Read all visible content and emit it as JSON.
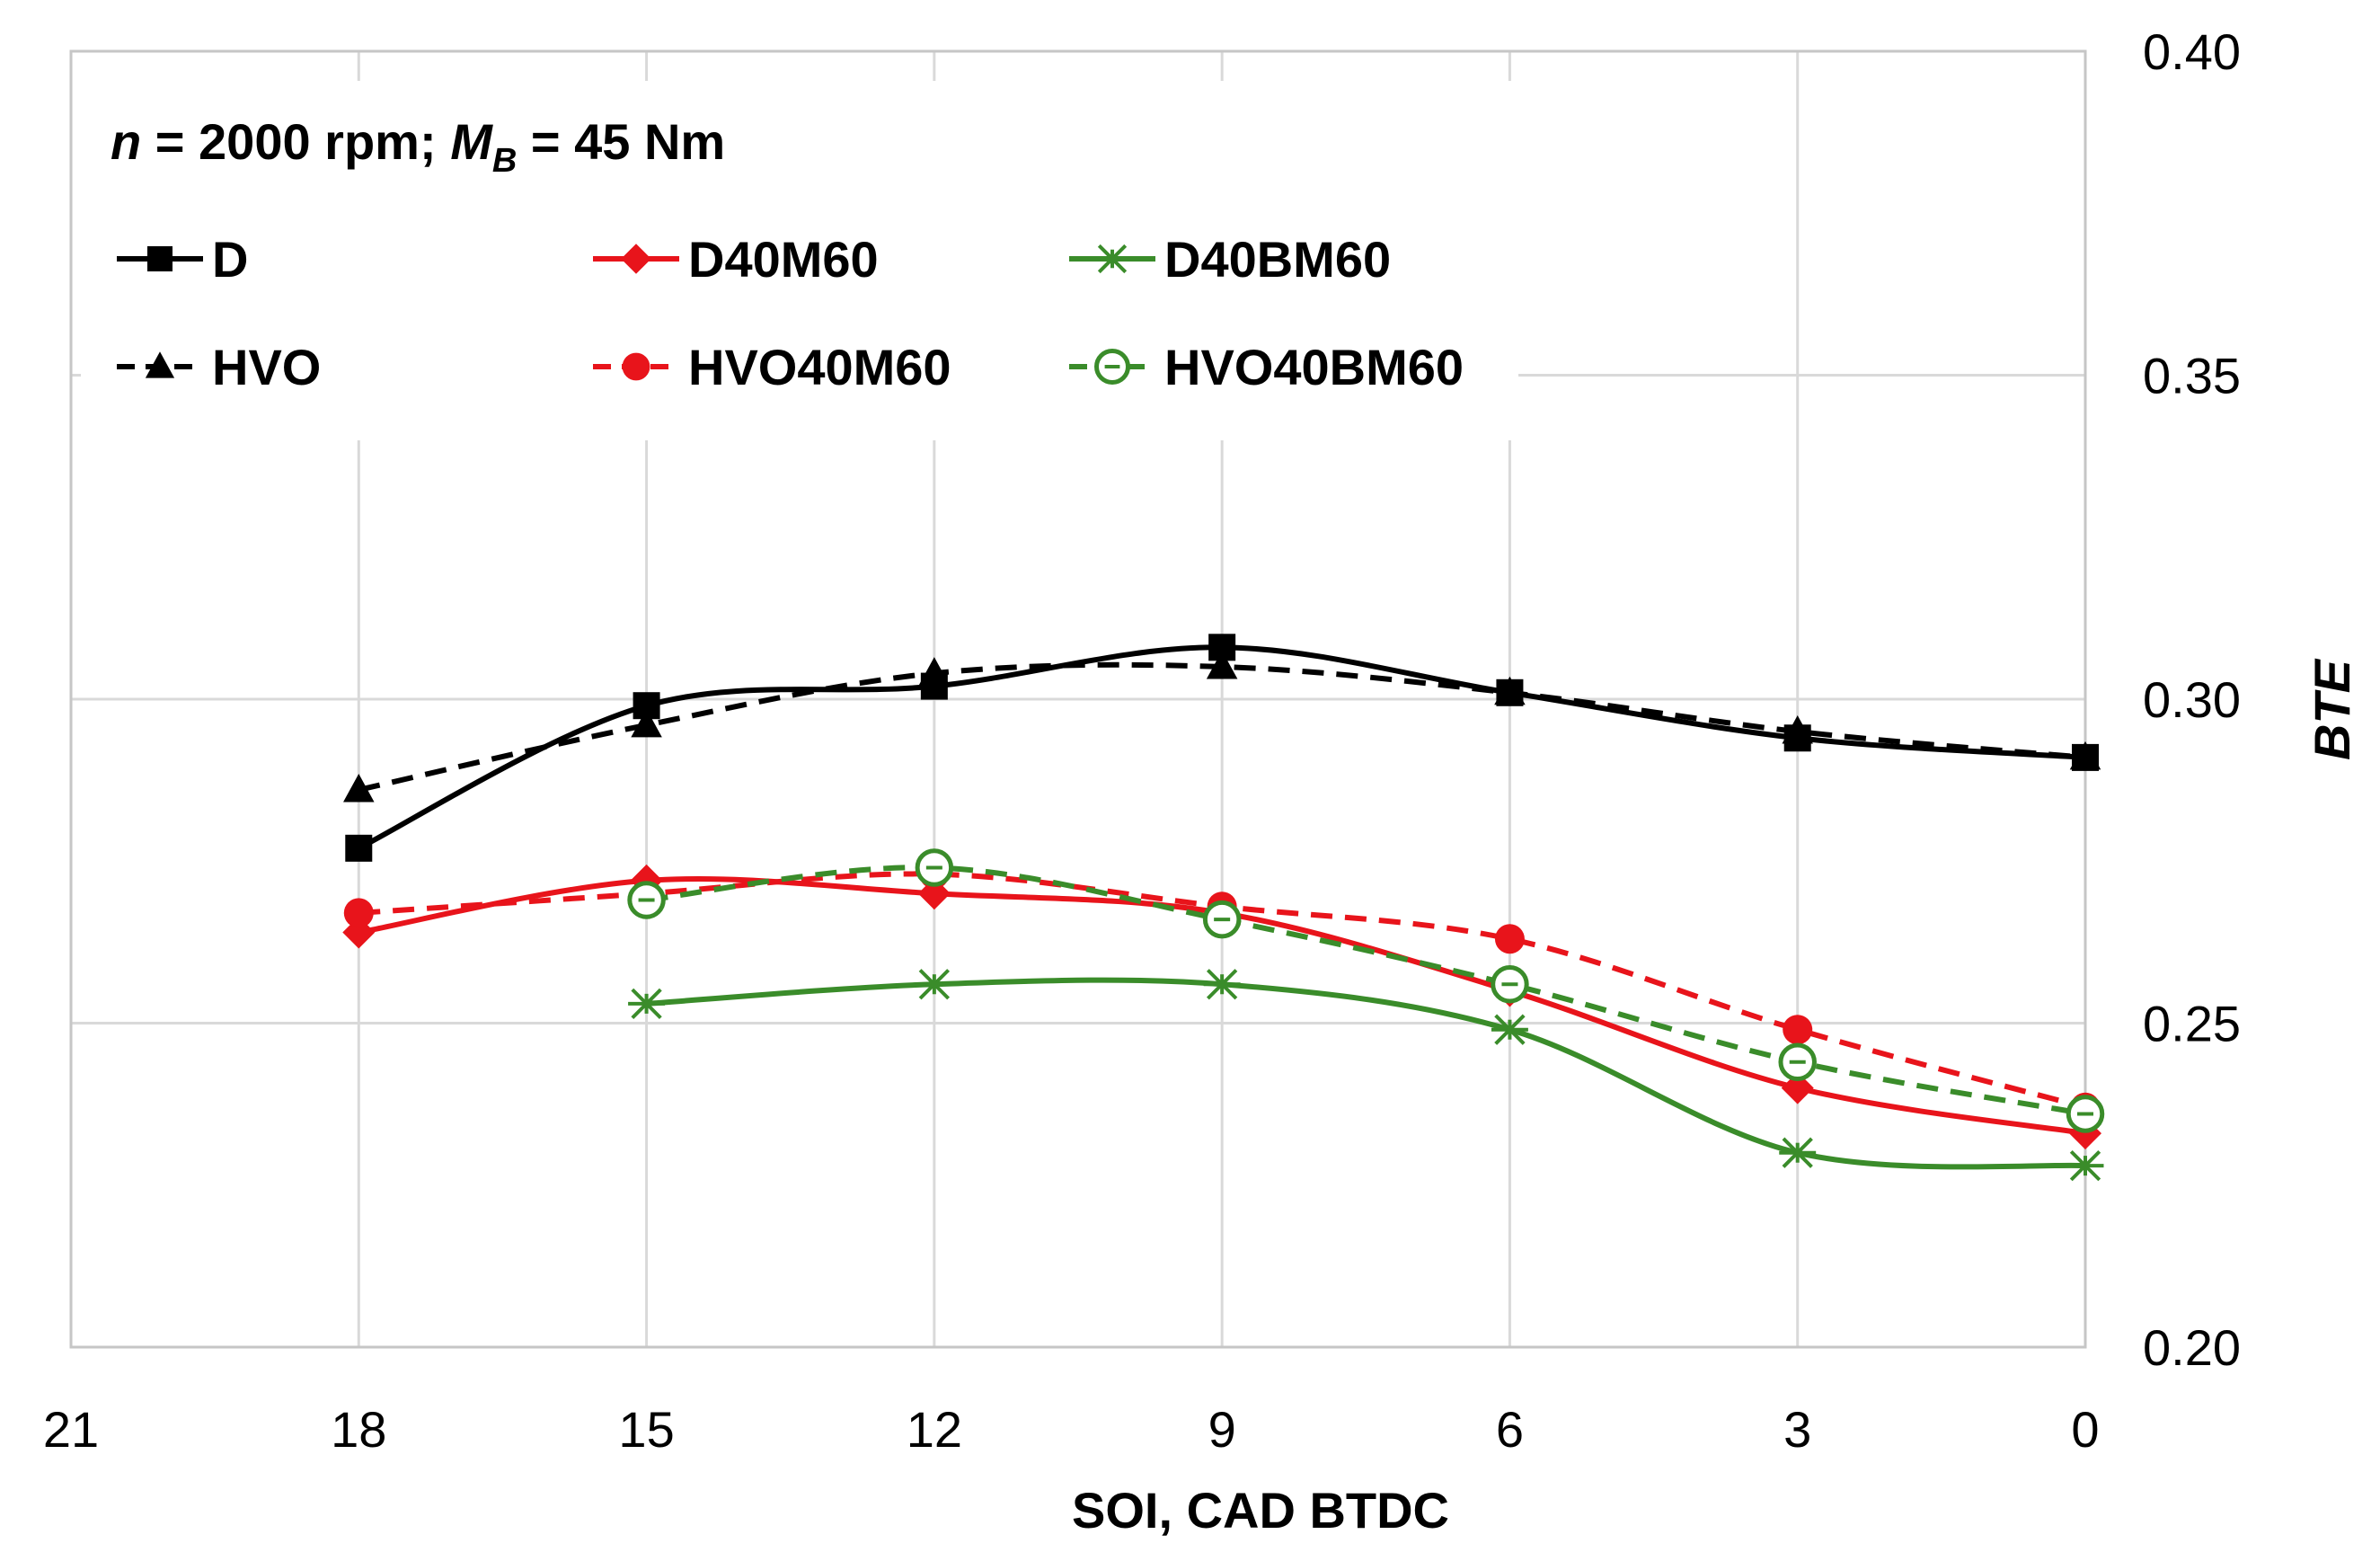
{
  "chart_data": {
    "type": "line",
    "title": "",
    "annotation": {
      "n_symbol": "n",
      "n_text": " = 2000 rpm; ",
      "m_symbol": "M",
      "m_subscript": "B",
      "m_text": " = 45 Nm"
    },
    "xlabel": "SOI,  CAD BTDC",
    "ylabel": "BTE",
    "xlim": [
      21,
      0
    ],
    "ylim": [
      0.2,
      0.4
    ],
    "x_ticks": [
      21,
      18,
      15,
      12,
      9,
      6,
      3,
      0
    ],
    "x_tick_labels": [
      "21",
      "18",
      "15",
      "12",
      "9",
      "6",
      "3",
      "0"
    ],
    "y_ticks": [
      0.2,
      0.25,
      0.3,
      0.35,
      0.4
    ],
    "y_tick_labels": [
      "0.20",
      "0.25",
      "0.30",
      "0.35",
      "0.40"
    ],
    "grid": true,
    "series": [
      {
        "name": "D",
        "color": "#000000",
        "dashed": false,
        "marker": "square",
        "points": [
          [
            18,
            0.277
          ],
          [
            15,
            0.299
          ],
          [
            12,
            0.302
          ],
          [
            9,
            0.308
          ],
          [
            6,
            0.301
          ],
          [
            3,
            0.294
          ],
          [
            0,
            0.291
          ]
        ]
      },
      {
        "name": "HVO",
        "color": "#000000",
        "dashed": true,
        "marker": "triangle",
        "points": [
          [
            18,
            0.286
          ],
          [
            15,
            0.296
          ],
          [
            12,
            0.304
          ],
          [
            9,
            0.305
          ],
          [
            6,
            0.301
          ],
          [
            3,
            0.295
          ],
          [
            0,
            0.291
          ]
        ]
      },
      {
        "name": "D40M60",
        "color": "#e8141b",
        "dashed": false,
        "marker": "diamond",
        "points": [
          [
            18,
            0.264
          ],
          [
            15,
            0.272
          ],
          [
            12,
            0.27
          ],
          [
            9,
            0.267
          ],
          [
            6,
            0.255
          ],
          [
            3,
            0.24
          ],
          [
            0,
            0.233
          ]
        ]
      },
      {
        "name": "HVO40M60",
        "color": "#e8141b",
        "dashed": true,
        "marker": "circle",
        "points": [
          [
            18,
            0.267
          ],
          [
            15,
            0.27
          ],
          [
            12,
            0.273
          ],
          [
            9,
            0.268
          ],
          [
            6,
            0.263
          ],
          [
            3,
            0.249
          ],
          [
            0,
            0.237
          ]
        ]
      },
      {
        "name": "D40BM60",
        "color": "#3a8c2a",
        "dashed": false,
        "marker": "star",
        "points": [
          [
            15,
            0.253
          ],
          [
            12,
            0.256
          ],
          [
            9,
            0.256
          ],
          [
            6,
            0.249
          ],
          [
            3,
            0.23
          ],
          [
            0,
            0.228
          ]
        ]
      },
      {
        "name": "HVO40BM60",
        "color": "#3a8c2a",
        "dashed": true,
        "marker": "open-circle",
        "points": [
          [
            15,
            0.269
          ],
          [
            12,
            0.274
          ],
          [
            9,
            0.266
          ],
          [
            6,
            0.256
          ],
          [
            3,
            0.244
          ],
          [
            0,
            0.236
          ]
        ]
      }
    ]
  }
}
